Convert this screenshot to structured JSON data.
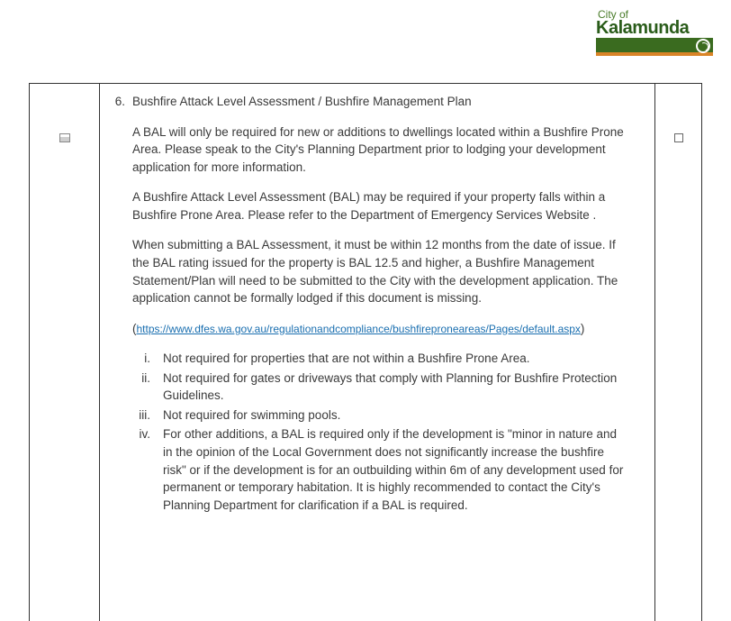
{
  "logo": {
    "cityof": "City of",
    "name": "Kalamunda"
  },
  "item": {
    "number": "6.",
    "title": "Bushfire Attack Level Assessment / Bushfire Management Plan",
    "para1": "A BAL will only be required for new or additions to dwellings located within a Bushfire Prone Area. Please speak to the City's Planning Department prior to lodging your development application for more information.",
    "para2": "A Bushfire Attack Level Assessment (BAL) may be required if your property falls within a Bushfire Prone Area. Please refer to the Department of Emergency Services Website .",
    "para3": "When submitting a BAL Assessment, it must be within 12 months from the date of issue. If the BAL rating issued for the property is BAL 12.5 and higher, a Bushfire Management Statement/Plan will need to be submitted to the City with the development application. The application cannot be formally lodged if this document is missing.",
    "link_text": "https://www.dfes.wa.gov.au/regulationandcompliance/bushfireproneareas/Pages/default.aspx",
    "roman": [
      {
        "n": "i.",
        "t": "Not required for properties that are not within a Bushfire Prone Area."
      },
      {
        "n": "ii.",
        "t": "Not required for gates or driveways that comply with Planning for Bushfire Protection Guidelines."
      },
      {
        "n": "iii.",
        "t": "Not required for swimming pools."
      },
      {
        "n": "iv.",
        "t": "For other additions, a BAL is required only if the development is \"minor in nature and in the opinion of the Local Government does not significantly increase the bushfire risk\" or if the development is for an outbuilding within 6m of any development used for permanent or temporary habitation. It is highly recommended to contact the City's Planning Department for clarification if a BAL is required."
      }
    ]
  },
  "colors": {
    "text": "#3a3a3a",
    "link": "#1a6fb0",
    "border": "#333333",
    "logo_green": "#3a6b1f",
    "logo_orange": "#d98427"
  }
}
